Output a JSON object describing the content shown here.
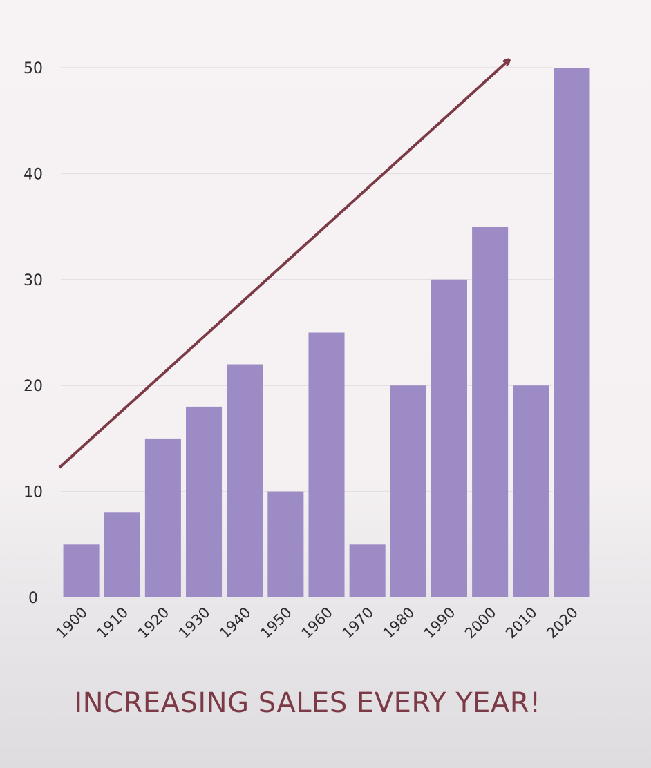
{
  "chart_data": {
    "type": "bar",
    "categories": [
      "1900",
      "1910",
      "1920",
      "1930",
      "1940",
      "1950",
      "1960",
      "1970",
      "1980",
      "1990",
      "2000",
      "2010",
      "2020"
    ],
    "values": [
      5,
      8,
      15,
      18,
      22,
      10,
      25,
      5,
      20,
      30,
      35,
      20,
      50
    ],
    "title": "",
    "xlabel": "",
    "ylabel": "",
    "ylim": [
      0,
      50
    ],
    "yticks": [
      "0",
      "10",
      "20",
      "30",
      "40",
      "50"
    ],
    "grid": true,
    "annotation": "INCREASING SALES EVERY YEAR!",
    "colors": {
      "bar": "#9d8bc6",
      "arrow": "#7b3a46",
      "grid": "#e4dfe3"
    }
  }
}
